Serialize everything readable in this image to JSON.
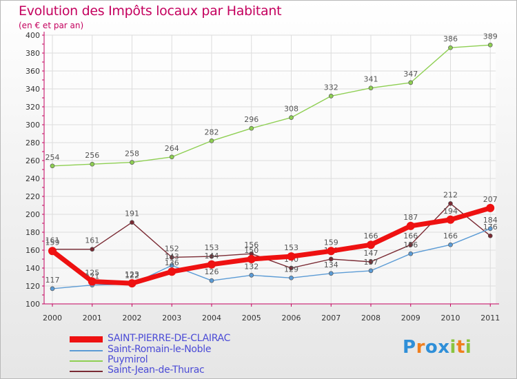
{
  "colors": {
    "title": "#c4005e",
    "grid": "#dcdcdc",
    "axis": "#c4005e",
    "label": "#555555",
    "legend_text": "#4b4bd6"
  },
  "chart_data": {
    "type": "line",
    "title": "Evolution des Impôts locaux par Habitant",
    "subtitle": "(en € et par an)",
    "xlabel": "",
    "ylabel": "",
    "x": [
      "2000",
      "2001",
      "2002",
      "2003",
      "2004",
      "2005",
      "2006",
      "2007",
      "2008",
      "2009",
      "2010",
      "2011"
    ],
    "ylim": [
      100,
      400
    ],
    "yticks": [
      "100",
      "120",
      "140",
      "160",
      "180",
      "200",
      "220",
      "240",
      "260",
      "280",
      "300",
      "320",
      "340",
      "360",
      "380",
      "400"
    ],
    "grid": true,
    "legend_position": "bottom-left",
    "series": [
      {
        "name": "Puymirol",
        "color": "#8ecf52",
        "values": [
          254,
          256,
          258,
          264,
          282,
          296,
          308,
          332,
          341,
          347,
          386,
          389
        ],
        "labels": [
          "254",
          "256",
          "258",
          "264",
          "282",
          "296",
          "308",
          "332",
          "341",
          "347",
          "386",
          "389"
        ]
      },
      {
        "name": "Saint-Jean-de-Thurac",
        "color": "#7a2a33",
        "values": [
          161,
          161,
          191,
          152,
          153,
          156,
          140,
          150,
          147,
          166,
          212,
          176
        ],
        "labels": [
          "161",
          "161",
          "191",
          "152",
          "153",
          "156",
          "140",
          "150",
          "147",
          "166",
          "212",
          "176"
        ]
      },
      {
        "name": "Saint-Romain-le-Noble",
        "color": "#5b9bd5",
        "values": [
          117,
          121,
          122,
          143,
          126,
          132,
          129,
          134,
          137,
          156,
          166,
          184
        ],
        "labels": [
          "117",
          "121",
          "122",
          "143",
          "126",
          "132",
          "129",
          "134",
          "137",
          "156",
          "166",
          "184"
        ]
      },
      {
        "name": "SAINT-PIERRE-DE-CLAIRAC",
        "color": "#ee1111",
        "values": [
          159,
          125,
          123,
          136,
          144,
          150,
          153,
          159,
          166,
          187,
          194,
          207
        ],
        "labels": [
          "159",
          "125",
          "123",
          "136",
          "144",
          "150",
          "153",
          "159",
          "166",
          "187",
          "194",
          "207"
        ]
      }
    ]
  },
  "legend": {
    "items": [
      {
        "label": "SAINT-PIERRE-DE-CLAIRAC",
        "color": "#ee1111",
        "thick": "yes"
      },
      {
        "label": "Saint-Romain-le-Noble",
        "color": "#5b9bd5",
        "thick": "no"
      },
      {
        "label": "Puymirol",
        "color": "#8ecf52",
        "thick": "no"
      },
      {
        "label": "Saint-Jean-de-Thurac",
        "color": "#7a2a33",
        "thick": "no"
      }
    ]
  },
  "logo": {
    "letters": [
      "P",
      "r",
      "o",
      "x",
      "i",
      "t",
      "i"
    ],
    "colors": [
      "#2f8fd8",
      "#f07f1e",
      "#2f8fd8",
      "#2f8fd8",
      "#8ac43f",
      "#f07f1e",
      "#8ac43f"
    ]
  }
}
